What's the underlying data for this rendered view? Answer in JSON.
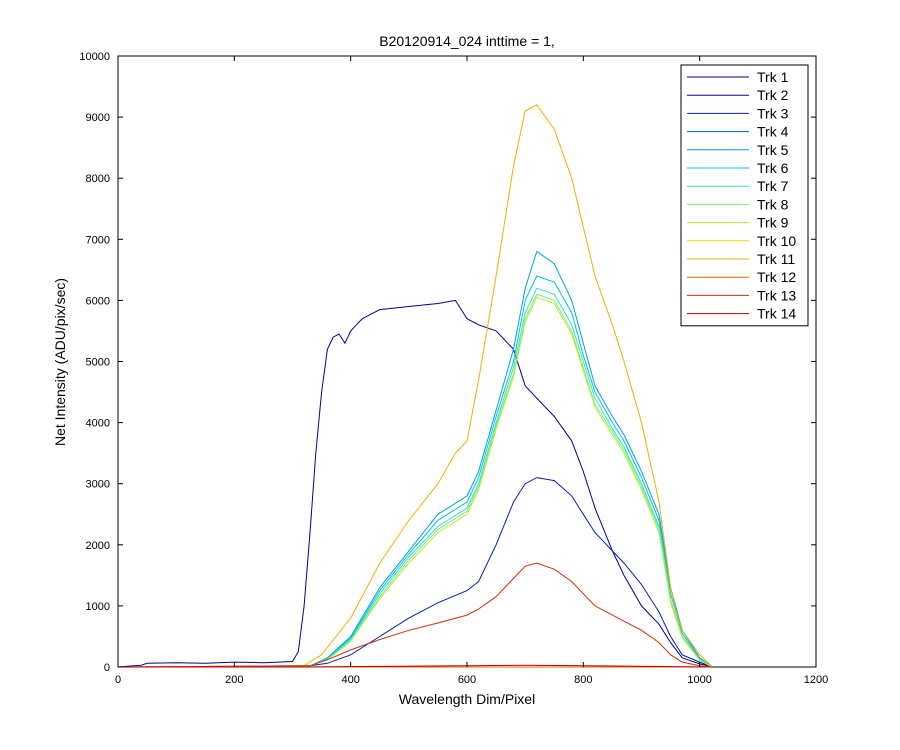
{
  "chart_data": {
    "type": "line",
    "title": "B20120914_024 inttime = 1,",
    "xlabel": "Wavelength Dim/Pixel",
    "ylabel": "Net Intensity (ADU/pix/sec)",
    "xlim": [
      0,
      1200
    ],
    "ylim": [
      0,
      10000
    ],
    "xticks": [
      0,
      200,
      400,
      600,
      800,
      1000,
      1200
    ],
    "xtick_labels": [
      "0",
      "200",
      "400",
      "600",
      "800",
      "1000",
      "1200"
    ],
    "yticks": [
      0,
      1000,
      2000,
      3000,
      4000,
      5000,
      6000,
      7000,
      8000,
      9000,
      10000
    ],
    "ytick_labels": [
      "0",
      "1000",
      "2000",
      "3000",
      "4000",
      "5000",
      "6000",
      "7000",
      "8000",
      "9000",
      "10000"
    ],
    "grid": false,
    "legend_position": "top-right",
    "series": [
      {
        "name": "Trk 1",
        "color": "#00008f",
        "x": [
          0,
          20,
          40,
          50,
          100,
          150,
          200,
          250,
          300,
          310,
          320,
          330,
          340,
          350,
          360,
          370,
          380,
          400,
          450,
          500,
          550,
          600,
          650,
          700,
          750,
          800,
          850,
          900,
          950,
          970,
          1000,
          1020
        ],
        "y": [
          0,
          0,
          0,
          0,
          0,
          0,
          0,
          0,
          0,
          0,
          0,
          0,
          0,
          0,
          0,
          0,
          0,
          0,
          0,
          0,
          0,
          0,
          0,
          0,
          0,
          0,
          0,
          0,
          0,
          0,
          0,
          0
        ]
      },
      {
        "name": "Trk 2",
        "color": "#00009f",
        "x": [
          0,
          40,
          50,
          100,
          150,
          200,
          250,
          300,
          310,
          320,
          330,
          340,
          350,
          360,
          370,
          380,
          390,
          400,
          420,
          450,
          500,
          550,
          580,
          600,
          620,
          650,
          680,
          700,
          720,
          750,
          780,
          800,
          820,
          850,
          870,
          900,
          930,
          950,
          970,
          1000,
          1020
        ],
        "y": [
          0,
          30,
          60,
          70,
          60,
          80,
          70,
          90,
          250,
          1000,
          2200,
          3500,
          4500,
          5200,
          5400,
          5450,
          5300,
          5500,
          5700,
          5850,
          5900,
          5950,
          6000,
          5700,
          5600,
          5500,
          5200,
          4600,
          4400,
          4100,
          3700,
          3200,
          2600,
          1900,
          1500,
          1000,
          700,
          400,
          150,
          50,
          10
        ]
      },
      {
        "name": "Trk 3",
        "color": "#0020c0",
        "x": [
          0,
          300,
          330,
          360,
          400,
          450,
          500,
          550,
          600,
          620,
          650,
          680,
          700,
          720,
          750,
          780,
          800,
          820,
          850,
          870,
          900,
          930,
          950,
          970,
          1000,
          1020
        ],
        "y": [
          0,
          0,
          20,
          60,
          200,
          500,
          800,
          1050,
          1250,
          1400,
          2000,
          2700,
          3000,
          3100,
          3050,
          2800,
          2500,
          2200,
          1900,
          1700,
          1350,
          900,
          500,
          200,
          80,
          10
        ]
      },
      {
        "name": "Trk 4",
        "color": "#0060c0",
        "x": [
          0,
          300,
          1020
        ],
        "y": [
          0,
          0,
          0
        ]
      },
      {
        "name": "Trk 5",
        "color": "#00a0e0",
        "x": [
          0,
          330,
          360,
          400,
          450,
          500,
          550,
          600,
          620,
          650,
          680,
          700,
          720,
          750,
          780,
          800,
          820,
          850,
          870,
          900,
          930,
          950,
          970,
          1000,
          1020
        ],
        "y": [
          0,
          20,
          150,
          500,
          1300,
          1900,
          2500,
          2800,
          3200,
          4200,
          5200,
          6200,
          6800,
          6600,
          6000,
          5300,
          4600,
          4100,
          3800,
          3200,
          2500,
          1300,
          600,
          150,
          10
        ]
      },
      {
        "name": "Trk 6",
        "color": "#00c0e8",
        "x": [
          0,
          330,
          360,
          400,
          450,
          500,
          550,
          600,
          620,
          650,
          680,
          700,
          720,
          750,
          780,
          800,
          820,
          850,
          870,
          900,
          930,
          950,
          970,
          1000,
          1020
        ],
        "y": [
          0,
          20,
          140,
          470,
          1250,
          1850,
          2400,
          2700,
          3100,
          4100,
          5000,
          6000,
          6400,
          6300,
          5800,
          5100,
          4500,
          4000,
          3700,
          3100,
          2400,
          1200,
          550,
          130,
          10
        ]
      },
      {
        "name": "Trk 7",
        "color": "#30e0d0",
        "x": [
          0,
          330,
          360,
          400,
          450,
          500,
          550,
          600,
          620,
          650,
          680,
          700,
          720,
          750,
          780,
          800,
          820,
          850,
          870,
          900,
          930,
          950,
          970,
          1000,
          1020
        ],
        "y": [
          0,
          20,
          130,
          450,
          1200,
          1800,
          2300,
          2600,
          3000,
          4000,
          4900,
          5800,
          6200,
          6100,
          5600,
          5000,
          4400,
          3900,
          3600,
          3000,
          2300,
          1100,
          500,
          120,
          10
        ]
      },
      {
        "name": "Trk 8",
        "color": "#80ef70",
        "x": [
          0,
          330,
          360,
          400,
          450,
          500,
          550,
          600,
          620,
          650,
          680,
          700,
          720,
          750,
          780,
          800,
          820,
          850,
          870,
          900,
          930,
          950,
          970,
          1000,
          1020
        ],
        "y": [
          0,
          20,
          120,
          430,
          1150,
          1750,
          2250,
          2550,
          2950,
          3950,
          4800,
          5700,
          6100,
          6000,
          5500,
          4900,
          4300,
          3850,
          3550,
          2950,
          2250,
          1100,
          500,
          120,
          10
        ]
      },
      {
        "name": "Trk 9",
        "color": "#b0ef30",
        "x": [
          0,
          330,
          360,
          400,
          450,
          500,
          550,
          600,
          620,
          650,
          680,
          700,
          720,
          750,
          780,
          800,
          820,
          850,
          870,
          900,
          930,
          950,
          970,
          1000,
          1020
        ],
        "y": [
          0,
          20,
          120,
          420,
          1120,
          1700,
          2200,
          2500,
          2900,
          3900,
          4750,
          5650,
          6050,
          5950,
          5450,
          4850,
          4250,
          3800,
          3500,
          2900,
          2200,
          1050,
          480,
          110,
          10
        ]
      },
      {
        "name": "Trk 10",
        "color": "#e0e000",
        "x": [
          0,
          300,
          1020
        ],
        "y": [
          0,
          0,
          0
        ]
      },
      {
        "name": "Trk 11",
        "color": "#f0b000",
        "x": [
          0,
          320,
          350,
          400,
          450,
          500,
          550,
          580,
          600,
          620,
          650,
          680,
          700,
          720,
          750,
          780,
          800,
          820,
          850,
          870,
          900,
          930,
          950,
          960,
          970,
          1000,
          1020
        ],
        "y": [
          0,
          20,
          200,
          800,
          1700,
          2400,
          3000,
          3500,
          3700,
          4700,
          6400,
          8200,
          9100,
          9200,
          8800,
          8000,
          7200,
          6400,
          5600,
          5000,
          4000,
          2700,
          1300,
          900,
          600,
          200,
          20
        ]
      },
      {
        "name": "Trk 12",
        "color": "#f06000",
        "x": [
          0,
          300,
          1020
        ],
        "y": [
          0,
          0,
          0
        ]
      },
      {
        "name": "Trk 13",
        "color": "#d03000",
        "x": [
          0,
          330,
          360,
          400,
          450,
          500,
          550,
          600,
          620,
          650,
          680,
          700,
          720,
          750,
          780,
          800,
          820,
          850,
          870,
          900,
          930,
          950,
          970,
          1000,
          1020
        ],
        "y": [
          0,
          20,
          120,
          280,
          450,
          600,
          720,
          850,
          950,
          1150,
          1450,
          1650,
          1700,
          1600,
          1400,
          1200,
          1000,
          850,
          750,
          600,
          400,
          200,
          80,
          20,
          0
        ]
      },
      {
        "name": "Trk 14",
        "color": "#c00000",
        "x": [
          0,
          300,
          600,
          700,
          800,
          1020
        ],
        "y": [
          0,
          0,
          20,
          30,
          20,
          0
        ]
      }
    ]
  }
}
